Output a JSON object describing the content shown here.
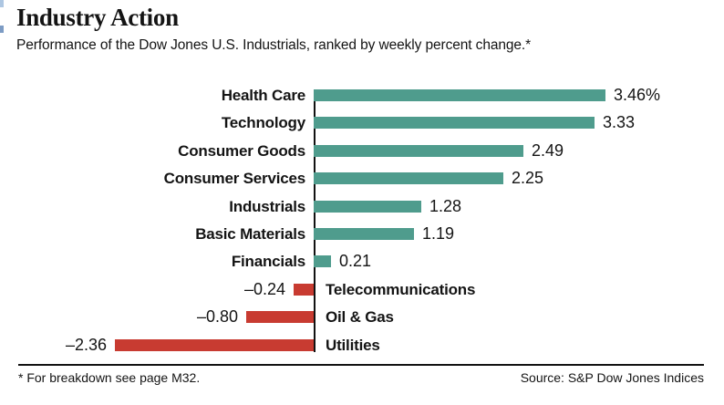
{
  "header": {
    "title": "Industry Action",
    "subtitle": "Performance of the Dow Jones U.S. Industrials, ranked by weekly percent change.*"
  },
  "chart_data": {
    "type": "bar",
    "orientation": "horizontal",
    "title": "Industry Action",
    "subtitle": "Performance of the Dow Jones U.S. Industrials, ranked by weekly percent change.*",
    "categories": [
      "Health Care",
      "Technology",
      "Consumer Goods",
      "Consumer Services",
      "Industrials",
      "Basic Materials",
      "Financials",
      "Telecommunications",
      "Oil & Gas",
      "Utilities"
    ],
    "values": [
      3.46,
      3.33,
      2.49,
      2.25,
      1.28,
      1.19,
      0.21,
      -0.24,
      -0.8,
      -2.36
    ],
    "value_labels": [
      "3.46%",
      "3.33",
      "2.49",
      "2.25",
      "1.28",
      "1.19",
      "0.21",
      "–0.24",
      "–0.80",
      "–2.36"
    ],
    "unit": "percent",
    "xlim": [
      -2.36,
      3.46
    ],
    "grid": false,
    "legend": "none",
    "positive_color": "#4F9C8D",
    "negative_color": "#C83B31",
    "axis_color": "#121212"
  },
  "footer": {
    "note": "* For breakdown see page M32.",
    "source": "Source: S&P Dow Jones Indices"
  }
}
